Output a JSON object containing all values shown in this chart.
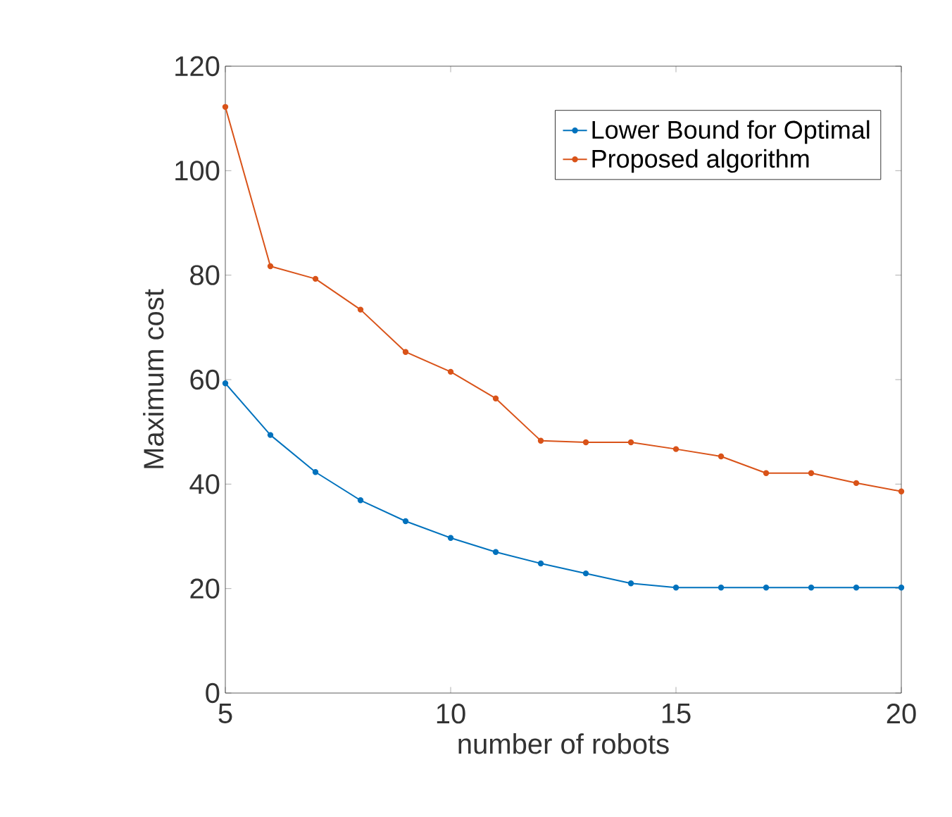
{
  "chart_data": {
    "type": "line",
    "xlabel": "number of robots",
    "ylabel": "Maximum cost",
    "x": [
      5,
      6,
      7,
      8,
      9,
      10,
      11,
      12,
      13,
      14,
      15,
      16,
      17,
      18,
      19,
      20
    ],
    "series": [
      {
        "name": "Lower Bound for Optimal",
        "color": "#0072bd",
        "values": [
          59.3,
          49.4,
          42.3,
          36.9,
          32.9,
          29.7,
          27.0,
          24.8,
          22.9,
          21.0,
          20.2,
          20.2,
          20.2,
          20.2,
          20.2,
          20.2
        ]
      },
      {
        "name": "Proposed algorithm",
        "color": "#d95319",
        "values": [
          112.2,
          81.7,
          79.3,
          73.4,
          65.3,
          61.5,
          56.4,
          48.3,
          48.0,
          48.0,
          46.7,
          45.3,
          42.1,
          42.1,
          40.2,
          38.6
        ]
      }
    ],
    "xlim": [
      5,
      20
    ],
    "ylim": [
      0,
      120
    ],
    "xticks": [
      5,
      10,
      15,
      20
    ],
    "yticks": [
      0,
      20,
      40,
      60,
      80,
      100,
      120
    ],
    "grid": false,
    "legend": "top right",
    "marker": "circle",
    "line_style": "solid"
  }
}
